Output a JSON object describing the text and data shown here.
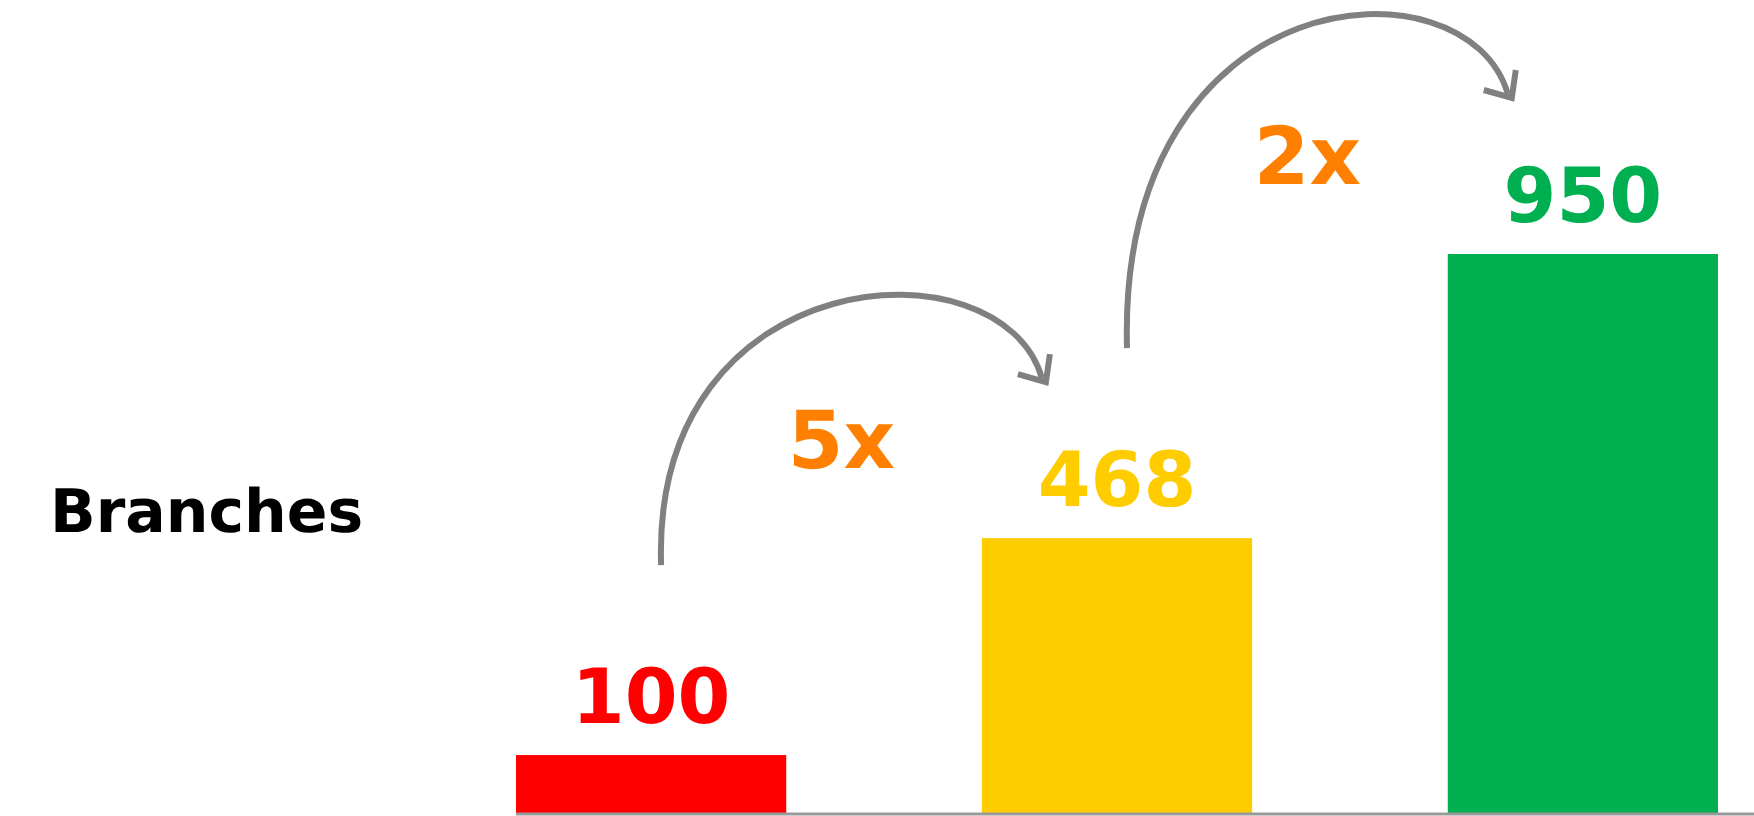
{
  "chart_data": {
    "type": "bar",
    "title": "Branches",
    "categories": [
      null,
      null,
      null
    ],
    "values": [
      100,
      468,
      950
    ],
    "colors": [
      "#ff0000",
      "#ffcc00",
      "#00b050"
    ],
    "data_labels": true,
    "annotations": [
      "5x",
      "2x"
    ]
  }
}
